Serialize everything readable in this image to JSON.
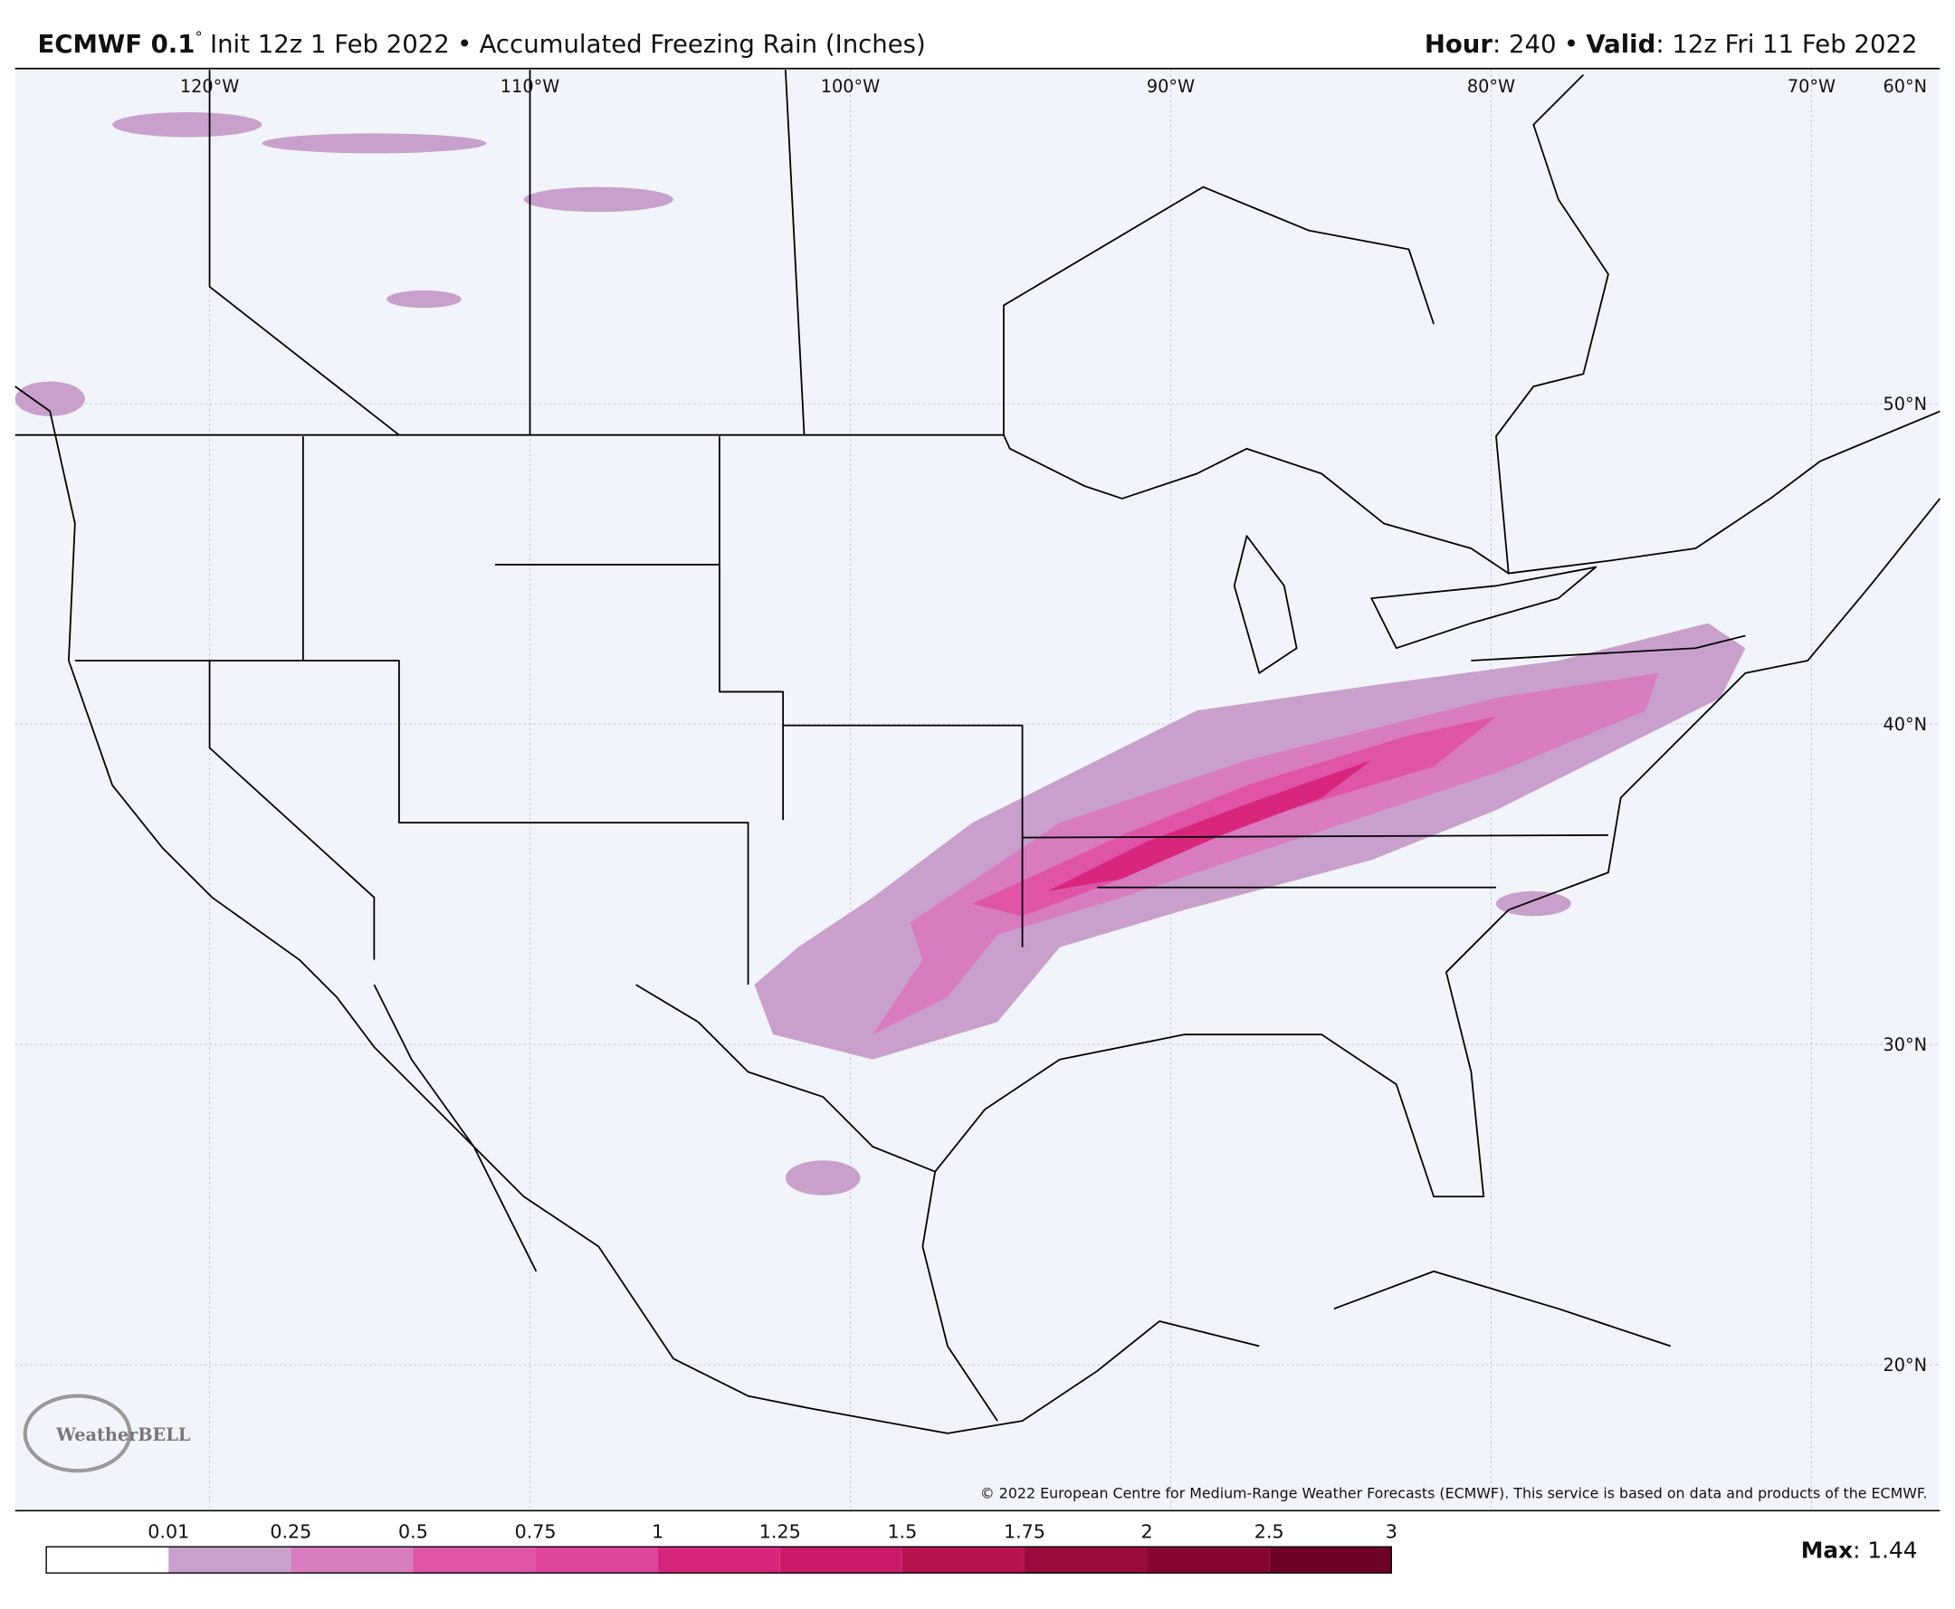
{
  "header": {
    "model": "ECMWF 0.1",
    "degree": "°",
    "init": "Init 12z 1 Feb 2022",
    "separator": "•",
    "product": "Accumulated Freezing Rain (Inches)",
    "hour_label": "Hour",
    "hour_value": "240",
    "valid_label": "Valid",
    "valid_value": "12z Fri 11 Feb 2022"
  },
  "map": {
    "lon_labels": [
      "120°W",
      "110°W",
      "100°W",
      "90°W",
      "80°W",
      "70°W",
      "60°N"
    ],
    "lat_labels": [
      "50°N",
      "40°N",
      "30°N",
      "20°N"
    ],
    "logo": "WeatherBELL",
    "copyright": "© 2022 European Centre for Medium-Range Weather Forecasts (ECMWF). This service is based on data and products of the ECMWF."
  },
  "legend": {
    "ticks": [
      "0.01",
      "0.25",
      "0.5",
      "0.75",
      "1",
      "1.25",
      "1.5",
      "1.75",
      "2",
      "2.5",
      "3"
    ],
    "colors": [
      "#ffffff",
      "#c9a0cc",
      "#d87bbf",
      "#e054a8",
      "#e0439b",
      "#d8267d",
      "#cc1a6a",
      "#b6134f",
      "#9c0a3e",
      "#860531",
      "#6e0226"
    ],
    "max_label": "Max",
    "max_value": "1.44"
  }
}
